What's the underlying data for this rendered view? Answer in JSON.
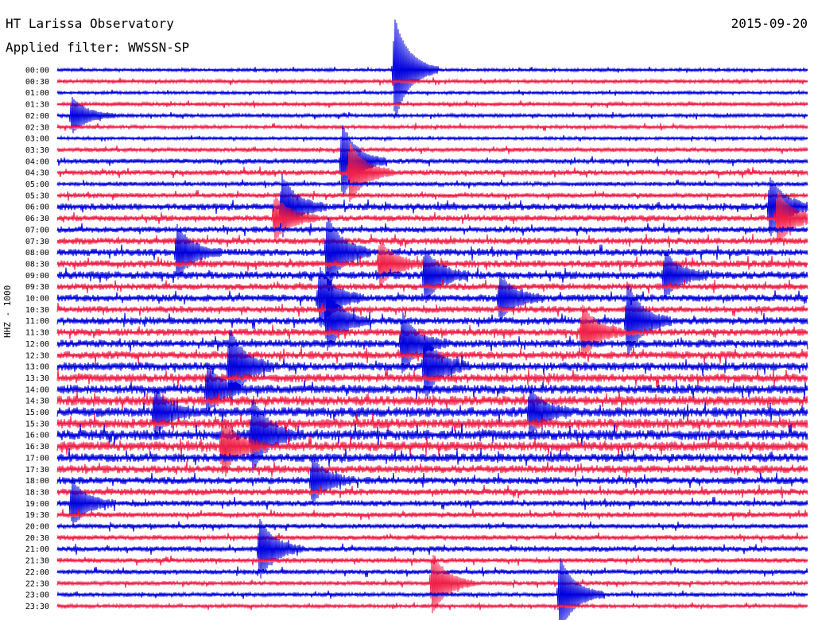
{
  "header": {
    "observatory": "HT Larissa Observatory",
    "date": "2015-09-20",
    "filter_label": "Applied filter: WWSSN-SP"
  },
  "chart_data": {
    "type": "line",
    "title": "HT Larissa Observatory",
    "ylabel": "HHZ - 1000",
    "colors": [
      "#0000dd",
      "#f01e46"
    ],
    "time_labels": [
      "00:00",
      "00:30",
      "01:00",
      "01:30",
      "02:00",
      "02:30",
      "03:00",
      "03:30",
      "04:00",
      "04:30",
      "05:00",
      "05:30",
      "06:00",
      "06:30",
      "07:00",
      "07:30",
      "08:00",
      "08:30",
      "09:00",
      "09:30",
      "10:00",
      "10:30",
      "11:00",
      "11:30",
      "12:00",
      "12:30",
      "13:00",
      "13:30",
      "14:00",
      "14:30",
      "15:00",
      "15:30",
      "16:00",
      "16:30",
      "17:00",
      "17:30",
      "18:00",
      "18:30",
      "19:00",
      "19:30",
      "20:00",
      "20:30",
      "21:00",
      "21:30",
      "22:00",
      "22:30",
      "23:00",
      "23:30"
    ],
    "noise_level": [
      0.25,
      0.3,
      0.25,
      0.3,
      0.3,
      0.3,
      0.25,
      0.35,
      0.4,
      0.45,
      0.35,
      0.4,
      0.55,
      0.5,
      0.5,
      0.55,
      0.6,
      0.6,
      0.65,
      0.55,
      0.6,
      0.55,
      0.6,
      0.6,
      0.65,
      0.65,
      0.7,
      0.7,
      0.75,
      0.8,
      0.8,
      0.8,
      0.85,
      0.8,
      0.7,
      0.65,
      0.6,
      0.55,
      0.5,
      0.45,
      0.4,
      0.4,
      0.45,
      0.4,
      0.4,
      0.35,
      0.35,
      0.3
    ],
    "events": [
      {
        "trace": 0,
        "t": 0.45,
        "amp": 3.5
      },
      {
        "trace": 4,
        "t": 0.02,
        "amp": 1.2
      },
      {
        "trace": 8,
        "t": 0.38,
        "amp": 2.5
      },
      {
        "trace": 9,
        "t": 0.39,
        "amp": 2.0
      },
      {
        "trace": 12,
        "t": 0.3,
        "amp": 2.0
      },
      {
        "trace": 12,
        "t": 0.95,
        "amp": 2.0
      },
      {
        "trace": 13,
        "t": 0.29,
        "amp": 1.5
      },
      {
        "trace": 13,
        "t": 0.96,
        "amp": 1.8
      },
      {
        "trace": 16,
        "t": 0.16,
        "amp": 1.8
      },
      {
        "trace": 16,
        "t": 0.36,
        "amp": 2.5
      },
      {
        "trace": 17,
        "t": 0.43,
        "amp": 1.5
      },
      {
        "trace": 18,
        "t": 0.49,
        "amp": 1.8
      },
      {
        "trace": 18,
        "t": 0.81,
        "amp": 1.5
      },
      {
        "trace": 20,
        "t": 0.35,
        "amp": 2.0
      },
      {
        "trace": 20,
        "t": 0.59,
        "amp": 1.5
      },
      {
        "trace": 22,
        "t": 0.36,
        "amp": 2.0
      },
      {
        "trace": 22,
        "t": 0.76,
        "amp": 2.5
      },
      {
        "trace": 23,
        "t": 0.7,
        "amp": 1.8
      },
      {
        "trace": 24,
        "t": 0.46,
        "amp": 2.0
      },
      {
        "trace": 26,
        "t": 0.23,
        "amp": 2.5
      },
      {
        "trace": 26,
        "t": 0.49,
        "amp": 2.0
      },
      {
        "trace": 28,
        "t": 0.2,
        "amp": 1.5
      },
      {
        "trace": 30,
        "t": 0.13,
        "amp": 1.5
      },
      {
        "trace": 30,
        "t": 0.63,
        "amp": 1.5
      },
      {
        "trace": 32,
        "t": 0.26,
        "amp": 2.5
      },
      {
        "trace": 33,
        "t": 0.22,
        "amp": 1.8
      },
      {
        "trace": 36,
        "t": 0.34,
        "amp": 1.5
      },
      {
        "trace": 38,
        "t": 0.02,
        "amp": 1.5
      },
      {
        "trace": 42,
        "t": 0.27,
        "amp": 2.0
      },
      {
        "trace": 45,
        "t": 0.5,
        "amp": 2.0
      },
      {
        "trace": 46,
        "t": 0.67,
        "amp": 2.5
      }
    ]
  }
}
